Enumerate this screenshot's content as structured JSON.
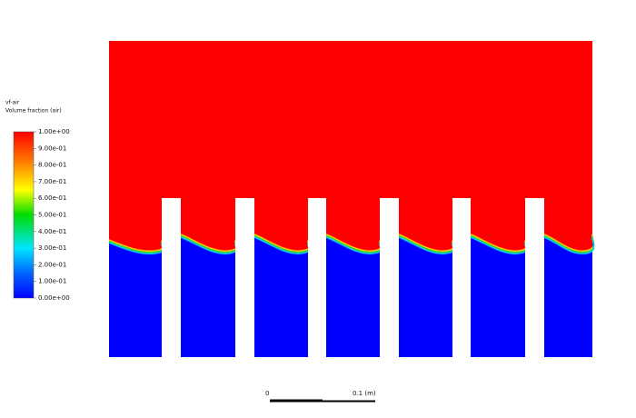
{
  "legend": {
    "title": [
      "vf-air",
      "Volume fraction (air)"
    ],
    "labels": [
      "1.00e+00",
      "9.00e-01",
      "8.00e-01",
      "7.00e-01",
      "6.00e-01",
      "5.00e-01",
      "4.00e-01",
      "3.00e-01",
      "2.00e-01",
      "1.00e-01",
      "0.00e+00"
    ]
  },
  "scale_bar": {
    "start": "0",
    "end": "0.1 (m)"
  }
}
